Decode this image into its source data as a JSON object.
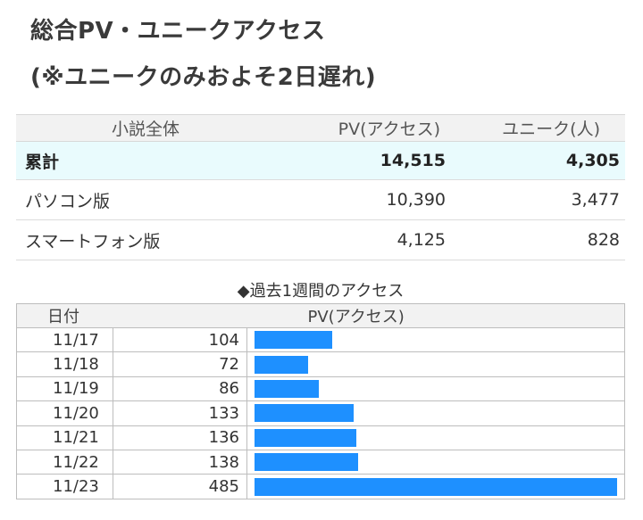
{
  "header": {
    "title_line1": "総合PV・ユニークアクセス",
    "title_line2": "(※ユニークのみおよそ2日遅れ)"
  },
  "summary": {
    "headers": [
      "小説全体",
      "PV(アクセス)",
      "ユニーク(人)"
    ],
    "rows": [
      {
        "label": "累計",
        "pv": "14,515",
        "unique": "4,305"
      },
      {
        "label": "パソコン版",
        "pv": "10,390",
        "unique": "3,477"
      },
      {
        "label": "スマートフォン版",
        "pv": "4,125",
        "unique": "828"
      }
    ]
  },
  "weekly": {
    "title": "◆過去1週間のアクセス",
    "headers": [
      "日付",
      "PV(アクセス)"
    ],
    "max_value": 485,
    "bar_color": "#1e90ff",
    "rows": [
      {
        "date": "11/17",
        "pv": "104",
        "value": 104
      },
      {
        "date": "11/18",
        "pv": "72",
        "value": 72
      },
      {
        "date": "11/19",
        "pv": "86",
        "value": 86
      },
      {
        "date": "11/20",
        "pv": "133",
        "value": 133
      },
      {
        "date": "11/21",
        "pv": "136",
        "value": 136
      },
      {
        "date": "11/22",
        "pv": "138",
        "value": 138
      },
      {
        "date": "11/23",
        "pv": "485",
        "value": 485
      }
    ]
  }
}
